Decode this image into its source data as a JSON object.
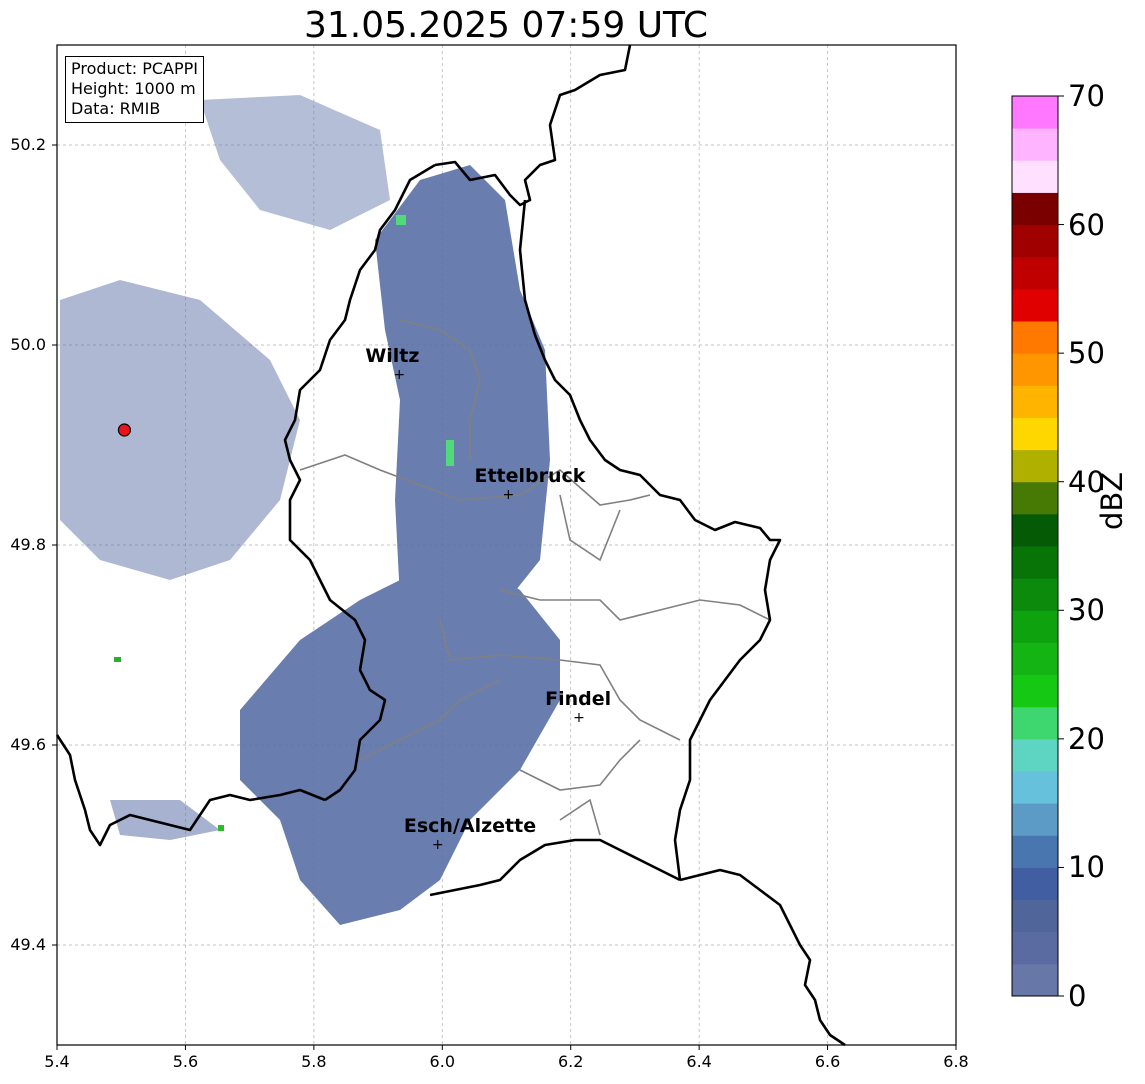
{
  "title": "31.05.2025 07:59 UTC",
  "info": {
    "product": "Product: PCAPPI",
    "height": "Height: 1000 m",
    "data": "Data: RMIB"
  },
  "map": {
    "lon_range": [
      5.4,
      6.8
    ],
    "lat_range": [
      49.3,
      50.3
    ],
    "x_ticks": [
      "5.4",
      "5.6",
      "5.8",
      "6.0",
      "6.2",
      "6.4",
      "6.6",
      "6.8"
    ],
    "y_ticks": [
      "49.4",
      "49.6",
      "49.8",
      "50.0",
      "50.2"
    ],
    "grid": true,
    "radar_site": {
      "lon": 5.505,
      "lat": 49.915,
      "color": "#e8141a"
    },
    "cities": [
      {
        "name": "Wiltz",
        "lon": 5.93,
        "lat": 49.97
      },
      {
        "name": "Ettelbruck",
        "lon": 6.1,
        "lat": 49.85
      },
      {
        "name": "Findel",
        "lon": 6.21,
        "lat": 49.627
      },
      {
        "name": "Esch/Alzette",
        "lon": 5.99,
        "lat": 49.5
      }
    ]
  },
  "colorbar": {
    "label": "dBZ",
    "ticks": [
      "0",
      "10",
      "20",
      "30",
      "40",
      "50",
      "60",
      "70"
    ],
    "min": 0,
    "max": 70,
    "step": 2.5,
    "colors": [
      "#6677a8",
      "#5a6ba2",
      "#506599",
      "#425ea2",
      "#4a76b0",
      "#5b9bc6",
      "#66c2dc",
      "#5ed4c2",
      "#3ed66e",
      "#14c814",
      "#14b414",
      "#0ea20e",
      "#0b8a0b",
      "#087408",
      "#055a05",
      "#477a05",
      "#b0b000",
      "#ffd700",
      "#ffb400",
      "#ff9600",
      "#ff7800",
      "#e00000",
      "#c00000",
      "#a00000",
      "#7a0000",
      "#ffe0ff",
      "#ffb4ff",
      "#ff78ff",
      "#ee36ee"
    ]
  }
}
